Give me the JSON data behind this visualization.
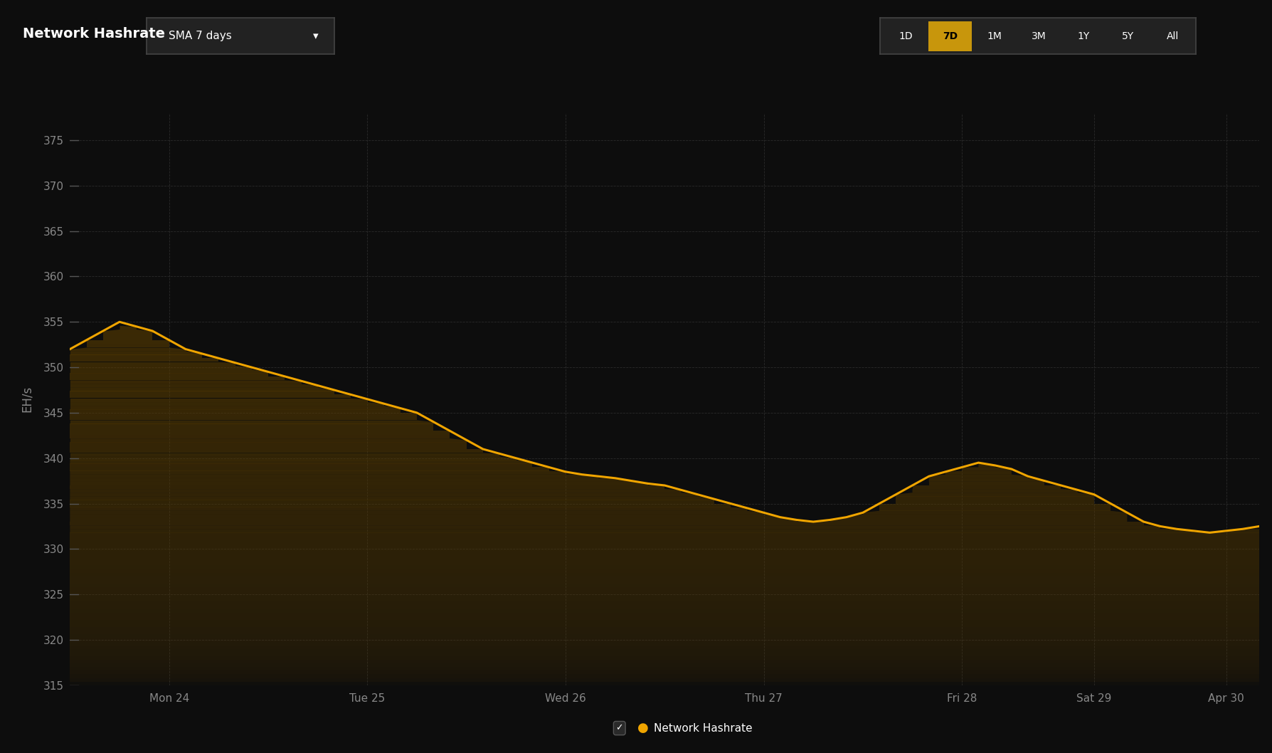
{
  "background_color": "#0d0d0d",
  "plot_bg_color": "#0d0d0d",
  "line_color": "#f0a500",
  "fill_color": "#5a3d00",
  "title": "Network Hashrate",
  "ylabel": "EH/s",
  "ylim": [
    315,
    378
  ],
  "yticks": [
    315,
    320,
    325,
    330,
    335,
    340,
    345,
    350,
    355,
    360,
    365,
    370,
    375
  ],
  "x_labels": [
    "Mon 24",
    "Tue 25",
    "Wed 26",
    "Thu 27",
    "Fri 28",
    "Sat 29",
    "Apr 30"
  ],
  "legend_label": "Network Hashrate",
  "grid_color": "#2a2a2a",
  "text_color": "#ffffff",
  "tick_color": "#888888",
  "time_buttons": [
    "1D",
    "7D",
    "1M",
    "3M",
    "1Y",
    "5Y",
    "All"
  ],
  "active_button": "7D",
  "active_btn_color": "#c8960c",
  "sma_label": "SMA 7 days",
  "btn_bg_color": "#222222",
  "btn_border_color": "#444444",
  "x_values": [
    0,
    0.5,
    1.0,
    1.5,
    2.0,
    2.5,
    3.0,
    3.5,
    4.0,
    4.5,
    5.0,
    5.5,
    6.0,
    6.5,
    7.0,
    7.5,
    8.0,
    8.5,
    9.0,
    9.5,
    10.0,
    10.5,
    11.0,
    11.5,
    12.0,
    12.5,
    13.0,
    13.5,
    14.0,
    14.5,
    15.0,
    15.5,
    16.0,
    16.5,
    17.0,
    17.5,
    18.0,
    18.5,
    19.0,
    19.5,
    20.0,
    20.5,
    21.0,
    21.5,
    22.0,
    22.5,
    23.0,
    23.5,
    24.0,
    24.5,
    25.0,
    25.5,
    26.0,
    26.5,
    27.0,
    27.5,
    28.0,
    28.5,
    29.0,
    29.5,
    30.0,
    30.5,
    31.0,
    31.5,
    32.0,
    32.5,
    33.0,
    33.5,
    34.0,
    34.5,
    35.0,
    35.5,
    36.0
  ],
  "y_values": [
    352,
    353,
    354,
    355,
    354.5,
    354,
    353,
    352,
    351.5,
    351,
    350.5,
    350,
    349.5,
    349,
    348.5,
    348,
    347.5,
    347,
    346.5,
    346,
    345.5,
    345,
    344,
    343,
    342,
    341,
    340.5,
    340,
    339.5,
    339,
    338.5,
    338.2,
    338,
    337.8,
    337.5,
    337.2,
    337,
    336.5,
    336,
    335.5,
    335,
    334.5,
    334,
    333.5,
    333.2,
    333,
    333.2,
    333.5,
    334,
    335,
    336,
    337,
    338,
    338.5,
    339,
    339.5,
    339.2,
    338.8,
    338,
    337.5,
    337,
    336.5,
    336,
    335,
    334,
    333,
    332.5,
    332.2,
    332,
    331.8,
    332,
    332.2,
    332.5
  ],
  "day_x_positions": [
    3,
    9,
    15,
    21,
    27,
    31,
    35
  ]
}
